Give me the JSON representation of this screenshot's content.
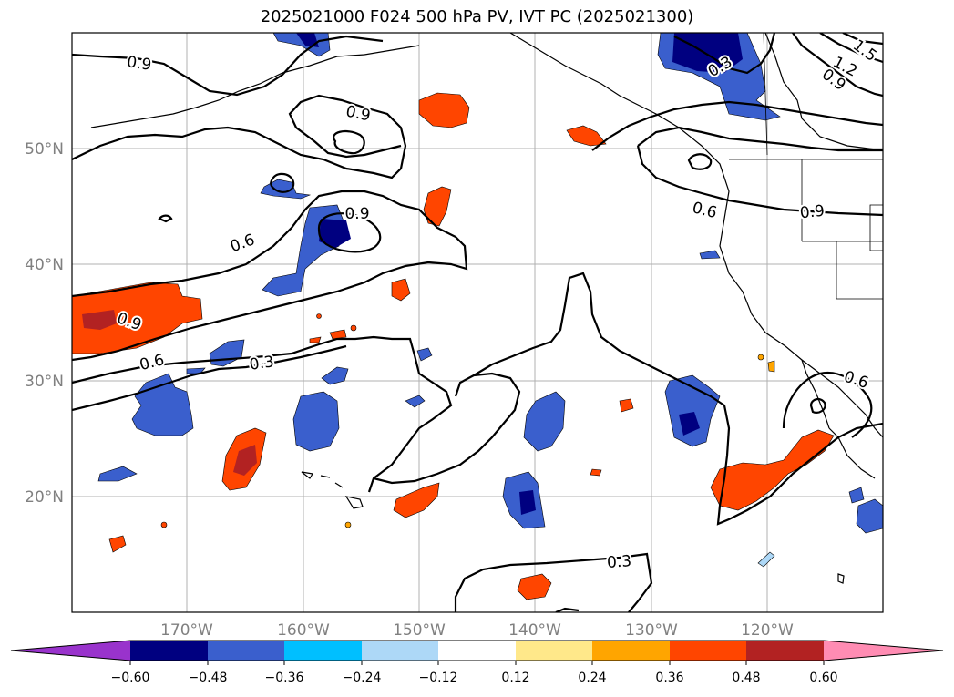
{
  "title": "2025021000 F024 500 hPa PV, IVT PC (2025021300)",
  "lat_labels": [
    "50°N",
    "40°N",
    "30°N",
    "20°N"
  ],
  "lon_labels": [
    "170°W",
    "160°W",
    "150°W",
    "140°W",
    "130°W",
    "120°W"
  ],
  "contour_labels": [
    {
      "text": "0.9",
      "near": "north-west"
    },
    {
      "text": "0.9",
      "near": "north-central"
    },
    {
      "text": "0.9",
      "near": "central PV maximum"
    },
    {
      "text": "0.6",
      "near": "west 42°N"
    },
    {
      "text": "0.9",
      "near": "west 35°N"
    },
    {
      "text": "0.6",
      "near": "west 31°N"
    },
    {
      "text": "0.3",
      "near": "west 30°N"
    },
    {
      "text": "0.3",
      "near": "north-east coast"
    },
    {
      "text": "1.2",
      "near": "north-east corner"
    },
    {
      "text": "1.5",
      "near": "north-east corner"
    },
    {
      "text": "0.9",
      "near": "north-east corner"
    },
    {
      "text": "0.6",
      "near": "Pacific Northwest"
    },
    {
      "text": "0.9",
      "near": "Pacific Northwest"
    },
    {
      "text": "0.6",
      "near": "Baja California"
    },
    {
      "text": "0.3",
      "near": "south-central"
    }
  ],
  "colorbar": {
    "ticks": [
      "−0.60",
      "−0.48",
      "−0.36",
      "−0.24",
      "−0.12",
      "0.12",
      "0.24",
      "0.36",
      "0.48",
      "0.60"
    ],
    "colors": [
      "#9933cc",
      "#000080",
      "#3a5fcd",
      "#00bfff",
      "#add8f7",
      "#ffffff",
      "#ffe88a",
      "#ffa500",
      "#ff4500",
      "#b22222",
      "#ff8cb3"
    ]
  },
  "colors": {
    "neg_strong": "#00008b",
    "neg_mid": "#3a5fcd",
    "neg_light": "#00bfff",
    "pos_mid": "#ff4500",
    "pos_light": "#ffa500",
    "pos_strong": "#b22222",
    "pos_faint": "#ffe88a"
  }
}
